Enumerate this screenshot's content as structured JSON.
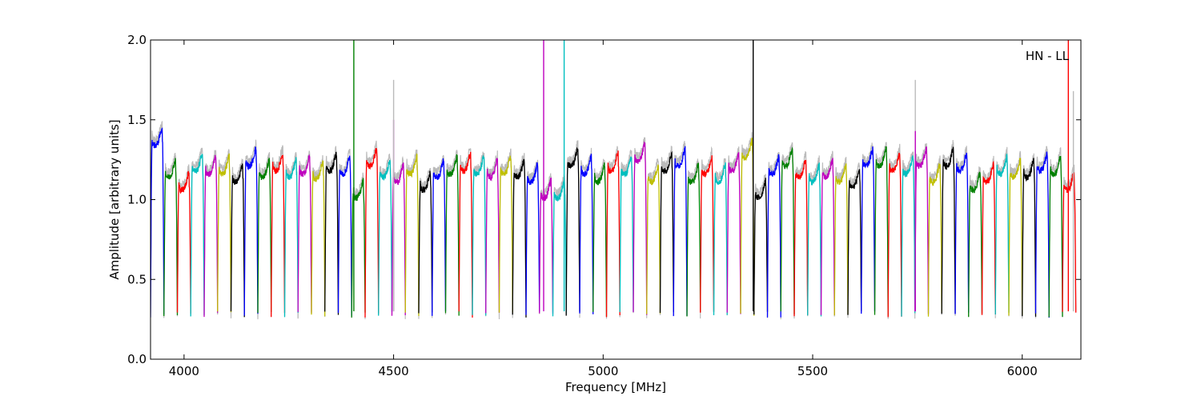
{
  "chart_data": {
    "type": "line",
    "title": "",
    "xlabel": "Frequency [MHz]",
    "ylabel": "Amplitude [arbitrary units]",
    "xlim": [
      3920,
      6140
    ],
    "ylim": [
      0.0,
      2.0
    ],
    "xticks": [
      4000,
      4500,
      5000,
      5500,
      6000
    ],
    "yticks": [
      0.0,
      0.5,
      1.0,
      1.5,
      2.0
    ],
    "xtick_labels": [
      "4000",
      "4500",
      "5000",
      "5500",
      "6000"
    ],
    "ytick_labels": [
      "0.0",
      "0.5",
      "1.0",
      "1.5",
      "2.0"
    ],
    "grid": false,
    "annotation": "HN - LL",
    "color_cycle": [
      "#0000ff",
      "#008000",
      "#ff0000",
      "#00bfbf",
      "#bf00bf",
      "#bfbf00",
      "#000000"
    ],
    "background_trace_color": "#bbbbbb",
    "channel_width_mhz": 32,
    "channels": [
      {
        "start": 3920,
        "color": "#0000ff",
        "level": 1.38
      },
      {
        "start": 3952,
        "color": "#008000",
        "level": 1.18
      },
      {
        "start": 3984,
        "color": "#ff0000",
        "level": 1.1
      },
      {
        "start": 4016,
        "color": "#00bfbf",
        "level": 1.22
      },
      {
        "start": 4048,
        "color": "#bf00bf",
        "level": 1.2
      },
      {
        "start": 4080,
        "color": "#bfbf00",
        "level": 1.2
      },
      {
        "start": 4112,
        "color": "#000000",
        "level": 1.15
      },
      {
        "start": 4144,
        "color": "#0000ff",
        "level": 1.25
      },
      {
        "start": 4176,
        "color": "#008000",
        "level": 1.18
      },
      {
        "start": 4208,
        "color": "#ff0000",
        "level": 1.22
      },
      {
        "start": 4240,
        "color": "#00bfbf",
        "level": 1.18
      },
      {
        "start": 4272,
        "color": "#bf00bf",
        "level": 1.2
      },
      {
        "start": 4304,
        "color": "#bfbf00",
        "level": 1.17
      },
      {
        "start": 4336,
        "color": "#000000",
        "level": 1.22
      },
      {
        "start": 4368,
        "color": "#0000ff",
        "level": 1.2
      },
      {
        "start": 4400,
        "color": "#008000",
        "level": 1.05
      },
      {
        "start": 4432,
        "color": "#ff0000",
        "level": 1.25
      },
      {
        "start": 4464,
        "color": "#00bfbf",
        "level": 1.18
      },
      {
        "start": 4496,
        "color": "#bf00bf",
        "level": 1.15
      },
      {
        "start": 4528,
        "color": "#bfbf00",
        "level": 1.2
      },
      {
        "start": 4560,
        "color": "#000000",
        "level": 1.1
      },
      {
        "start": 4592,
        "color": "#0000ff",
        "level": 1.18
      },
      {
        "start": 4624,
        "color": "#008000",
        "level": 1.2
      },
      {
        "start": 4656,
        "color": "#ff0000",
        "level": 1.22
      },
      {
        "start": 4688,
        "color": "#00bfbf",
        "level": 1.2
      },
      {
        "start": 4720,
        "color": "#bf00bf",
        "level": 1.18
      },
      {
        "start": 4752,
        "color": "#bfbf00",
        "level": 1.2
      },
      {
        "start": 4784,
        "color": "#000000",
        "level": 1.18
      },
      {
        "start": 4816,
        "color": "#0000ff",
        "level": 1.15
      },
      {
        "start": 4848,
        "color": "#bf00bf",
        "level": 1.05
      },
      {
        "start": 4880,
        "color": "#00bfbf",
        "level": 1.05
      },
      {
        "start": 4912,
        "color": "#000000",
        "level": 1.25
      },
      {
        "start": 4944,
        "color": "#0000ff",
        "level": 1.2
      },
      {
        "start": 4976,
        "color": "#008000",
        "level": 1.15
      },
      {
        "start": 5008,
        "color": "#ff0000",
        "level": 1.22
      },
      {
        "start": 5040,
        "color": "#00bfbf",
        "level": 1.2
      },
      {
        "start": 5072,
        "color": "#bf00bf",
        "level": 1.28
      },
      {
        "start": 5104,
        "color": "#bfbf00",
        "level": 1.15
      },
      {
        "start": 5136,
        "color": "#000000",
        "level": 1.22
      },
      {
        "start": 5168,
        "color": "#0000ff",
        "level": 1.25
      },
      {
        "start": 5200,
        "color": "#008000",
        "level": 1.15
      },
      {
        "start": 5232,
        "color": "#ff0000",
        "level": 1.2
      },
      {
        "start": 5264,
        "color": "#00bfbf",
        "level": 1.15
      },
      {
        "start": 5296,
        "color": "#bf00bf",
        "level": 1.22
      },
      {
        "start": 5328,
        "color": "#bfbf00",
        "level": 1.3
      },
      {
        "start": 5360,
        "color": "#000000",
        "level": 1.05
      },
      {
        "start": 5392,
        "color": "#0000ff",
        "level": 1.2
      },
      {
        "start": 5424,
        "color": "#008000",
        "level": 1.25
      },
      {
        "start": 5456,
        "color": "#ff0000",
        "level": 1.18
      },
      {
        "start": 5488,
        "color": "#00bfbf",
        "level": 1.15
      },
      {
        "start": 5520,
        "color": "#bf00bf",
        "level": 1.18
      },
      {
        "start": 5552,
        "color": "#bfbf00",
        "level": 1.15
      },
      {
        "start": 5584,
        "color": "#000000",
        "level": 1.12
      },
      {
        "start": 5616,
        "color": "#0000ff",
        "level": 1.25
      },
      {
        "start": 5648,
        "color": "#008000",
        "level": 1.25
      },
      {
        "start": 5680,
        "color": "#ff0000",
        "level": 1.22
      },
      {
        "start": 5712,
        "color": "#00bfbf",
        "level": 1.2
      },
      {
        "start": 5744,
        "color": "#bf00bf",
        "level": 1.25
      },
      {
        "start": 5776,
        "color": "#bfbf00",
        "level": 1.15
      },
      {
        "start": 5808,
        "color": "#000000",
        "level": 1.25
      },
      {
        "start": 5840,
        "color": "#0000ff",
        "level": 1.22
      },
      {
        "start": 5872,
        "color": "#008000",
        "level": 1.1
      },
      {
        "start": 5904,
        "color": "#ff0000",
        "level": 1.15
      },
      {
        "start": 5936,
        "color": "#00bfbf",
        "level": 1.2
      },
      {
        "start": 5968,
        "color": "#bfbf00",
        "level": 1.18
      },
      {
        "start": 6000,
        "color": "#000000",
        "level": 1.18
      },
      {
        "start": 6032,
        "color": "#0000ff",
        "level": 1.22
      },
      {
        "start": 6064,
        "color": "#008000",
        "level": 1.2
      },
      {
        "start": 6096,
        "color": "#ff0000",
        "level": 1.1
      }
    ],
    "spikes": [
      {
        "x": 4405,
        "color": "#008000",
        "peak": 2.0
      },
      {
        "x": 4500,
        "color": "#bf00bf",
        "peak": 1.5
      },
      {
        "x": 4500,
        "color": "#bbbbbb",
        "peak": 1.75
      },
      {
        "x": 4858,
        "color": "#bf00bf",
        "peak": 2.0
      },
      {
        "x": 4907,
        "color": "#00bfbf",
        "peak": 2.0
      },
      {
        "x": 5358,
        "color": "#000000",
        "peak": 2.0
      },
      {
        "x": 5745,
        "color": "#bbbbbb",
        "peak": 1.75
      },
      {
        "x": 5745,
        "color": "#bf00bf",
        "peak": 1.43
      },
      {
        "x": 6110,
        "color": "#ff0000",
        "peak": 2.0
      },
      {
        "x": 6122,
        "color": "#bbbbbb",
        "peak": 1.68
      }
    ]
  }
}
